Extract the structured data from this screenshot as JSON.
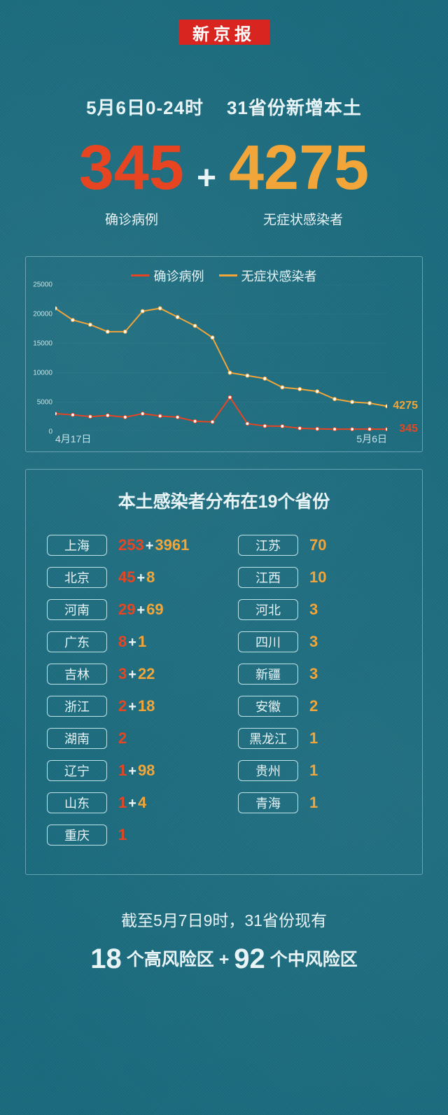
{
  "logo": {
    "text": "新京报",
    "bg": "#d8251f",
    "color": "#ffffff"
  },
  "headline": {
    "line1_left": "5月6日0-24时",
    "line1_right": "31省份新增本土",
    "confirmed_value": "345",
    "confirmed_label": "确诊病例",
    "asymp_value": "4275",
    "asymp_label": "无症状感染者",
    "plus": "+"
  },
  "colors": {
    "confirmed": "#e74522",
    "asymptomatic": "#f2a538",
    "text_light": "#e8f4f6",
    "panel_border": "rgba(173,216,230,0.5)",
    "background": "#1a6b7e",
    "grid": "#4a8a98",
    "marker_fill": "#ffffff"
  },
  "chart": {
    "type": "line",
    "legend": [
      {
        "label": "确诊病例",
        "color": "#e74522"
      },
      {
        "label": "无症状感染者",
        "color": "#f2a538"
      }
    ],
    "x_start_label": "4月17日",
    "x_end_label": "5月6日",
    "x_count": 20,
    "ylim": [
      0,
      25000
    ],
    "yticks": [
      0,
      5000,
      10000,
      15000,
      20000,
      25000
    ],
    "ytick_labels": [
      "0",
      "5000",
      "10000",
      "15000",
      "20000",
      "25000"
    ],
    "line_width": 2,
    "marker_radius": 2.5,
    "series_confirmed": {
      "color": "#e74522",
      "end_label": "345",
      "values": [
        3000,
        2800,
        2500,
        2700,
        2400,
        3000,
        2600,
        2400,
        1700,
        1600,
        5800,
        1300,
        900,
        850,
        500,
        400,
        350,
        350,
        350,
        345
      ]
    },
    "series_asymp": {
      "color": "#f2a538",
      "end_label": "4275",
      "values": [
        21000,
        19000,
        18200,
        17000,
        17000,
        20500,
        21000,
        19500,
        18000,
        16000,
        10000,
        9500,
        9000,
        7500,
        7200,
        6800,
        5500,
        5000,
        4800,
        4275
      ]
    }
  },
  "provinces": {
    "title": "本土感染者分布在19个省份",
    "left": [
      {
        "name": "上海",
        "confirmed": "253",
        "asymp": "3961"
      },
      {
        "name": "北京",
        "confirmed": "45",
        "asymp": "8"
      },
      {
        "name": "河南",
        "confirmed": "29",
        "asymp": "69"
      },
      {
        "name": "广东",
        "confirmed": "8",
        "asymp": "1"
      },
      {
        "name": "吉林",
        "confirmed": "3",
        "asymp": "22"
      },
      {
        "name": "浙江",
        "confirmed": "2",
        "asymp": "18"
      },
      {
        "name": "湖南",
        "confirmed": "2"
      },
      {
        "name": "辽宁",
        "confirmed": "1",
        "asymp": "98"
      },
      {
        "name": "山东",
        "confirmed": "1",
        "asymp": "4"
      },
      {
        "name": "重庆",
        "confirmed": "1"
      }
    ],
    "right": [
      {
        "name": "江苏",
        "asymp": "70"
      },
      {
        "name": "江西",
        "asymp": "10"
      },
      {
        "name": "河北",
        "asymp": "3"
      },
      {
        "name": "四川",
        "asymp": "3"
      },
      {
        "name": "新疆",
        "asymp": "3"
      },
      {
        "name": "安徽",
        "asymp": "2"
      },
      {
        "name": "黑龙江",
        "asymp": "1"
      },
      {
        "name": "贵州",
        "asymp": "1"
      },
      {
        "name": "青海",
        "asymp": "1"
      }
    ]
  },
  "risk": {
    "line1": "截至5月7日9时，31省份现有",
    "high_num": "18",
    "high_text": "个高风险区",
    "plus": "+",
    "mid_num": "92",
    "mid_text": "个中风险区"
  }
}
